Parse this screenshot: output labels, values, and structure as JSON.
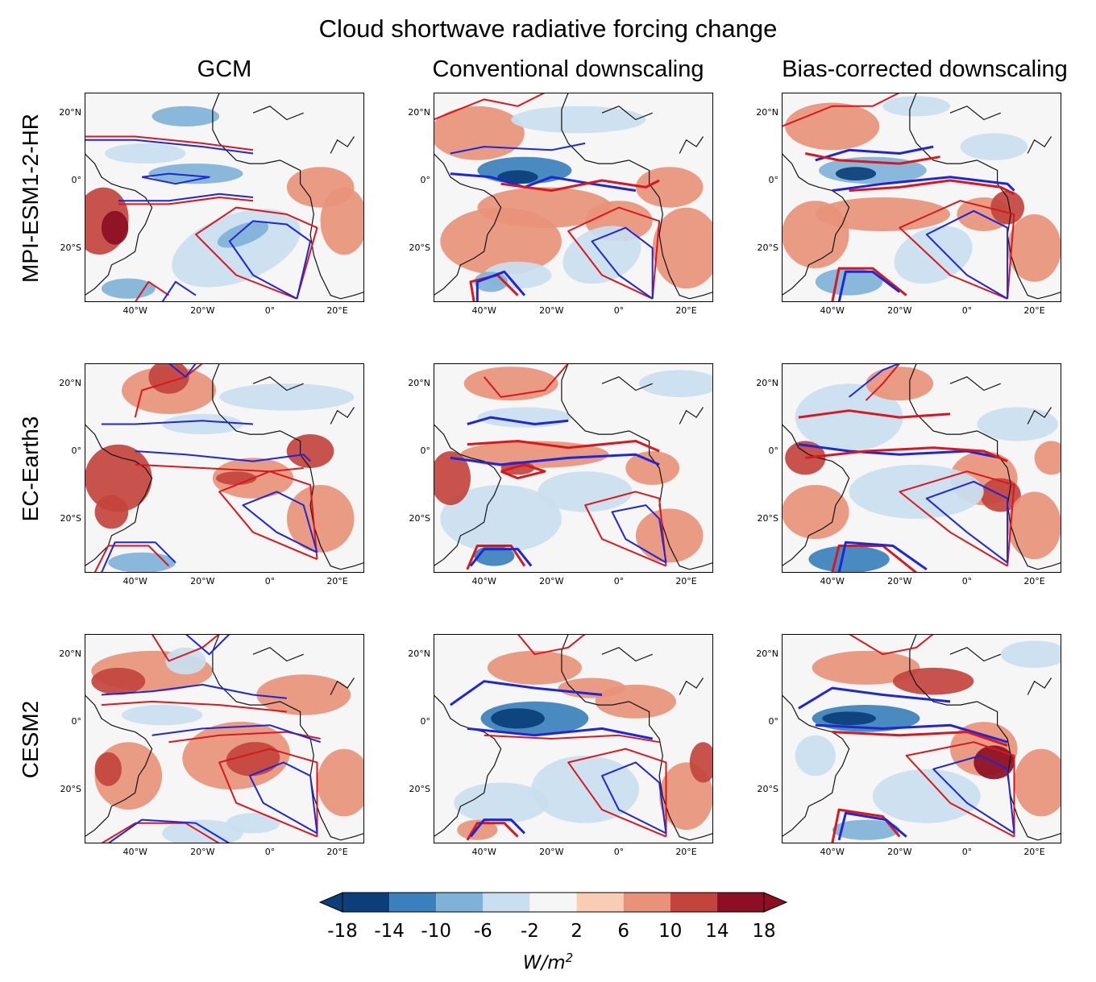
{
  "title": "Cloud shortwave radiative forcing change",
  "columns": [
    "GCM",
    "Conventional downscaling",
    "Bias-corrected downscaling"
  ],
  "rows": [
    "MPI-ESM1-2-HR",
    "EC-Earth3",
    "CESM2"
  ],
  "axis_labels": {
    "lat": [
      "20°N",
      "0°",
      "20°S"
    ],
    "lon": [
      "40°W",
      "20°W",
      "0°",
      "20°E"
    ]
  },
  "colorbar": {
    "ticks": [
      "-18",
      "-14",
      "-10",
      "-6",
      "-2",
      "2",
      "6",
      "10",
      "14",
      "18"
    ],
    "colors": [
      "#0b3f7a",
      "#3a80bc",
      "#7fb2d8",
      "#c9def0",
      "#f6f6f6",
      "#f8cdb4",
      "#e8927a",
      "#c2443d",
      "#8c0f23"
    ],
    "unit_base": "W/m",
    "unit_sup": "2",
    "extend": "both"
  },
  "map_extent": {
    "lon": [
      -55,
      28
    ],
    "lat": [
      -36,
      26
    ]
  },
  "contour_colors": {
    "present": "#d8181f",
    "future": "#1f25d8"
  }
}
